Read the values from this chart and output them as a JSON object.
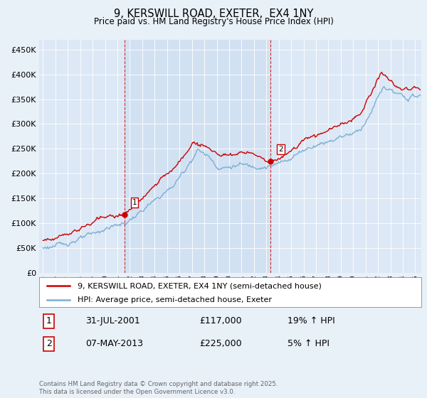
{
  "title": "9, KERSWILL ROAD, EXETER,  EX4 1NY",
  "subtitle": "Price paid vs. HM Land Registry's House Price Index (HPI)",
  "ylabel_ticks": [
    "£0",
    "£50K",
    "£100K",
    "£150K",
    "£200K",
    "£250K",
    "£300K",
    "£350K",
    "£400K",
    "£450K"
  ],
  "ytick_vals": [
    0,
    50000,
    100000,
    150000,
    200000,
    250000,
    300000,
    350000,
    400000,
    450000
  ],
  "ylim": [
    0,
    470000
  ],
  "xlim_start": 1994.7,
  "xlim_end": 2025.5,
  "hpi_color": "#7bafd4",
  "price_color": "#cc0000",
  "marker1_x": 2001.58,
  "marker1_y": 117000,
  "marker2_x": 2013.35,
  "marker2_y": 225000,
  "vline1_x": 2001.58,
  "vline2_x": 2013.35,
  "legend1": "9, KERSWILL ROAD, EXETER, EX4 1NY (semi-detached house)",
  "legend2": "HPI: Average price, semi-detached house, Exeter",
  "table_row1_label": "1",
  "table_row1_date": "31-JUL-2001",
  "table_row1_price": "£117,000",
  "table_row1_hpi": "19% ↑ HPI",
  "table_row2_label": "2",
  "table_row2_date": "07-MAY-2013",
  "table_row2_price": "£225,000",
  "table_row2_hpi": "5% ↑ HPI",
  "footer": "Contains HM Land Registry data © Crown copyright and database right 2025.\nThis data is licensed under the Open Government Licence v3.0.",
  "background_color": "#e8f0f8",
  "plot_bg_color": "#dce8f5",
  "vline_shade_color": "#ccddf0"
}
